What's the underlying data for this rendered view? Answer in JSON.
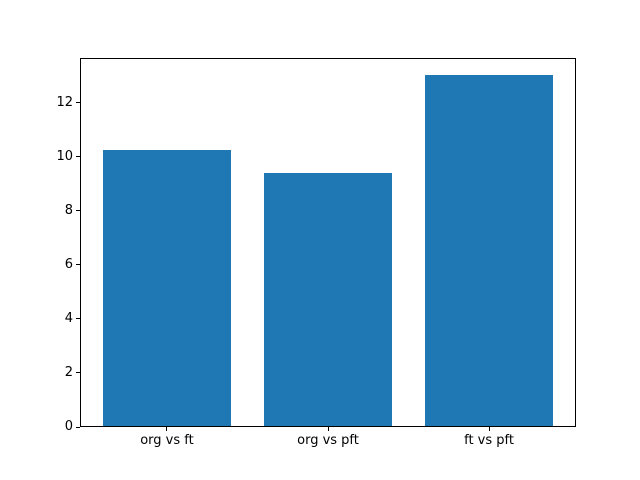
{
  "chart_data": {
    "type": "bar",
    "categories": [
      "org vs ft",
      "org vs pft",
      "ft vs pft"
    ],
    "values": [
      10.2,
      9.35,
      13.0
    ],
    "title": "",
    "xlabel": "",
    "ylabel": "",
    "ylim": [
      0,
      13.65
    ],
    "yticks": [
      0,
      2,
      4,
      6,
      8,
      10,
      12
    ],
    "bar_color": "#1f77b4",
    "spine_color": "#000000",
    "background": "#ffffff",
    "bar_width_fraction": 0.8,
    "grid": false,
    "legend": null
  }
}
